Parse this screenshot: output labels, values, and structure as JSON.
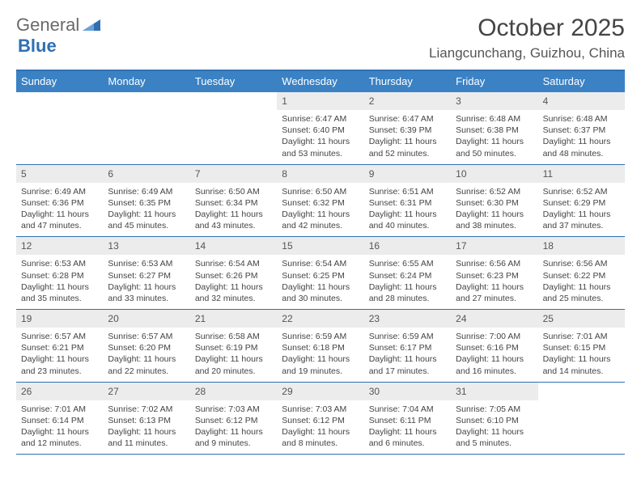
{
  "logo": {
    "word1": "General",
    "word2": "Blue"
  },
  "title": "October 2025",
  "location": "Liangcunchang, Guizhou, China",
  "colors": {
    "header_bg": "#3b82c4",
    "border": "#2f6fb3",
    "daynum_bg": "#ececec",
    "text": "#444444"
  },
  "day_headers": [
    "Sunday",
    "Monday",
    "Tuesday",
    "Wednesday",
    "Thursday",
    "Friday",
    "Saturday"
  ],
  "weeks": [
    [
      {
        "blank": true
      },
      {
        "blank": true
      },
      {
        "blank": true
      },
      {
        "n": "1",
        "sr": "6:47 AM",
        "ss": "6:40 PM",
        "dl": "11 hours and 53 minutes."
      },
      {
        "n": "2",
        "sr": "6:47 AM",
        "ss": "6:39 PM",
        "dl": "11 hours and 52 minutes."
      },
      {
        "n": "3",
        "sr": "6:48 AM",
        "ss": "6:38 PM",
        "dl": "11 hours and 50 minutes."
      },
      {
        "n": "4",
        "sr": "6:48 AM",
        "ss": "6:37 PM",
        "dl": "11 hours and 48 minutes."
      }
    ],
    [
      {
        "n": "5",
        "sr": "6:49 AM",
        "ss": "6:36 PM",
        "dl": "11 hours and 47 minutes."
      },
      {
        "n": "6",
        "sr": "6:49 AM",
        "ss": "6:35 PM",
        "dl": "11 hours and 45 minutes."
      },
      {
        "n": "7",
        "sr": "6:50 AM",
        "ss": "6:34 PM",
        "dl": "11 hours and 43 minutes."
      },
      {
        "n": "8",
        "sr": "6:50 AM",
        "ss": "6:32 PM",
        "dl": "11 hours and 42 minutes."
      },
      {
        "n": "9",
        "sr": "6:51 AM",
        "ss": "6:31 PM",
        "dl": "11 hours and 40 minutes."
      },
      {
        "n": "10",
        "sr": "6:52 AM",
        "ss": "6:30 PM",
        "dl": "11 hours and 38 minutes."
      },
      {
        "n": "11",
        "sr": "6:52 AM",
        "ss": "6:29 PM",
        "dl": "11 hours and 37 minutes."
      }
    ],
    [
      {
        "n": "12",
        "sr": "6:53 AM",
        "ss": "6:28 PM",
        "dl": "11 hours and 35 minutes."
      },
      {
        "n": "13",
        "sr": "6:53 AM",
        "ss": "6:27 PM",
        "dl": "11 hours and 33 minutes."
      },
      {
        "n": "14",
        "sr": "6:54 AM",
        "ss": "6:26 PM",
        "dl": "11 hours and 32 minutes."
      },
      {
        "n": "15",
        "sr": "6:54 AM",
        "ss": "6:25 PM",
        "dl": "11 hours and 30 minutes."
      },
      {
        "n": "16",
        "sr": "6:55 AM",
        "ss": "6:24 PM",
        "dl": "11 hours and 28 minutes."
      },
      {
        "n": "17",
        "sr": "6:56 AM",
        "ss": "6:23 PM",
        "dl": "11 hours and 27 minutes."
      },
      {
        "n": "18",
        "sr": "6:56 AM",
        "ss": "6:22 PM",
        "dl": "11 hours and 25 minutes."
      }
    ],
    [
      {
        "n": "19",
        "sr": "6:57 AM",
        "ss": "6:21 PM",
        "dl": "11 hours and 23 minutes."
      },
      {
        "n": "20",
        "sr": "6:57 AM",
        "ss": "6:20 PM",
        "dl": "11 hours and 22 minutes."
      },
      {
        "n": "21",
        "sr": "6:58 AM",
        "ss": "6:19 PM",
        "dl": "11 hours and 20 minutes."
      },
      {
        "n": "22",
        "sr": "6:59 AM",
        "ss": "6:18 PM",
        "dl": "11 hours and 19 minutes."
      },
      {
        "n": "23",
        "sr": "6:59 AM",
        "ss": "6:17 PM",
        "dl": "11 hours and 17 minutes."
      },
      {
        "n": "24",
        "sr": "7:00 AM",
        "ss": "6:16 PM",
        "dl": "11 hours and 16 minutes."
      },
      {
        "n": "25",
        "sr": "7:01 AM",
        "ss": "6:15 PM",
        "dl": "11 hours and 14 minutes."
      }
    ],
    [
      {
        "n": "26",
        "sr": "7:01 AM",
        "ss": "6:14 PM",
        "dl": "11 hours and 12 minutes."
      },
      {
        "n": "27",
        "sr": "7:02 AM",
        "ss": "6:13 PM",
        "dl": "11 hours and 11 minutes."
      },
      {
        "n": "28",
        "sr": "7:03 AM",
        "ss": "6:12 PM",
        "dl": "11 hours and 9 minutes."
      },
      {
        "n": "29",
        "sr": "7:03 AM",
        "ss": "6:12 PM",
        "dl": "11 hours and 8 minutes."
      },
      {
        "n": "30",
        "sr": "7:04 AM",
        "ss": "6:11 PM",
        "dl": "11 hours and 6 minutes."
      },
      {
        "n": "31",
        "sr": "7:05 AM",
        "ss": "6:10 PM",
        "dl": "11 hours and 5 minutes."
      },
      {
        "blank": true
      }
    ]
  ],
  "labels": {
    "sunrise": "Sunrise:",
    "sunset": "Sunset:",
    "daylight": "Daylight:"
  }
}
